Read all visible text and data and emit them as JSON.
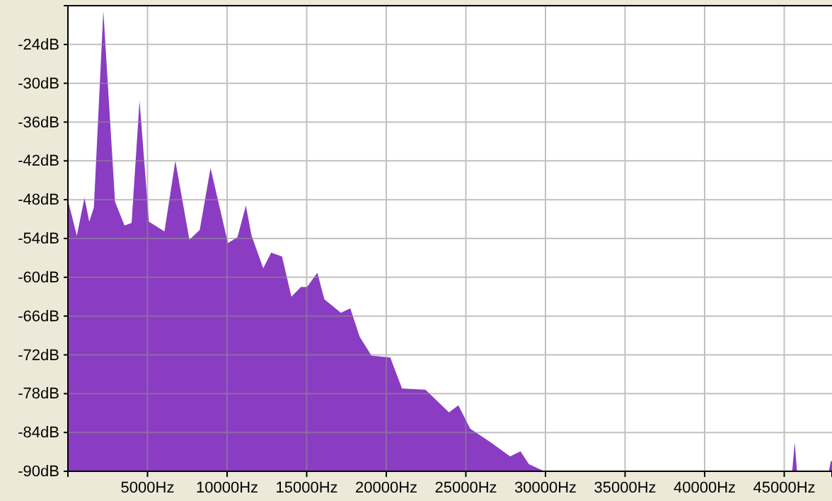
{
  "chart_data": {
    "type": "area",
    "color": "#8a3cc2",
    "grid": true,
    "xlim": [
      0,
      48000
    ],
    "ylim": [
      -90,
      -18
    ],
    "xticks": [
      {
        "value": 5000,
        "label": "5000Hz"
      },
      {
        "value": 10000,
        "label": "10000Hz"
      },
      {
        "value": 15000,
        "label": "15000Hz"
      },
      {
        "value": 20000,
        "label": "20000Hz"
      },
      {
        "value": 25000,
        "label": "25000Hz"
      },
      {
        "value": 30000,
        "label": "30000Hz"
      },
      {
        "value": 35000,
        "label": "35000Hz"
      },
      {
        "value": 40000,
        "label": "40000Hz"
      },
      {
        "value": 45000,
        "label": "45000Hz"
      }
    ],
    "yticks": [
      {
        "value": -24,
        "label": "-24dB"
      },
      {
        "value": -30,
        "label": "-30dB"
      },
      {
        "value": -36,
        "label": "-36dB"
      },
      {
        "value": -42,
        "label": "-42dB"
      },
      {
        "value": -48,
        "label": "-48dB"
      },
      {
        "value": -54,
        "label": "-54dB"
      },
      {
        "value": -60,
        "label": "-60dB"
      },
      {
        "value": -66,
        "label": "-66dB"
      },
      {
        "value": -72,
        "label": "-72dB"
      },
      {
        "value": -78,
        "label": "-78dB"
      },
      {
        "value": -84,
        "label": "-84dB"
      },
      {
        "value": -90,
        "label": "-90dB"
      }
    ],
    "x": [
      0,
      0,
      560,
      1040,
      1340,
      1630,
      2225,
      2960,
      3555,
      4000,
      4500,
      5090,
      6065,
      6750,
      7630,
      8280,
      8960,
      10050,
      10650,
      11180,
      11530,
      12270,
      12770,
      13450,
      14040,
      14640,
      15020,
      15670,
      16110,
      17150,
      17740,
      18330,
      19070,
      20250,
      20990,
      22460,
      23940,
      24530,
      25270,
      26600,
      27780,
      28430,
      28960,
      29850,
      30100,
      45500,
      45660,
      45800,
      47800,
      47930,
      48000
    ],
    "values": [
      -90,
      -48.1,
      -53.6,
      -47.7,
      -51.4,
      -49.2,
      -18.8,
      -48.3,
      -52,
      -51.6,
      -32.7,
      -51.4,
      -52.9,
      -42,
      -54.2,
      -52.7,
      -43.1,
      -54.7,
      -53.8,
      -48.9,
      -53.5,
      -58.6,
      -56.2,
      -56.8,
      -63,
      -61.5,
      -61.5,
      -59.3,
      -63.4,
      -65.5,
      -64.8,
      -69.2,
      -72.1,
      -72.4,
      -77.2,
      -77.4,
      -80.9,
      -79.8,
      -83.4,
      -85.6,
      -87.7,
      -86.9,
      -88.9,
      -89.9,
      -90,
      -90,
      -85.5,
      -90,
      -90,
      -88.4,
      -88.4
    ]
  }
}
